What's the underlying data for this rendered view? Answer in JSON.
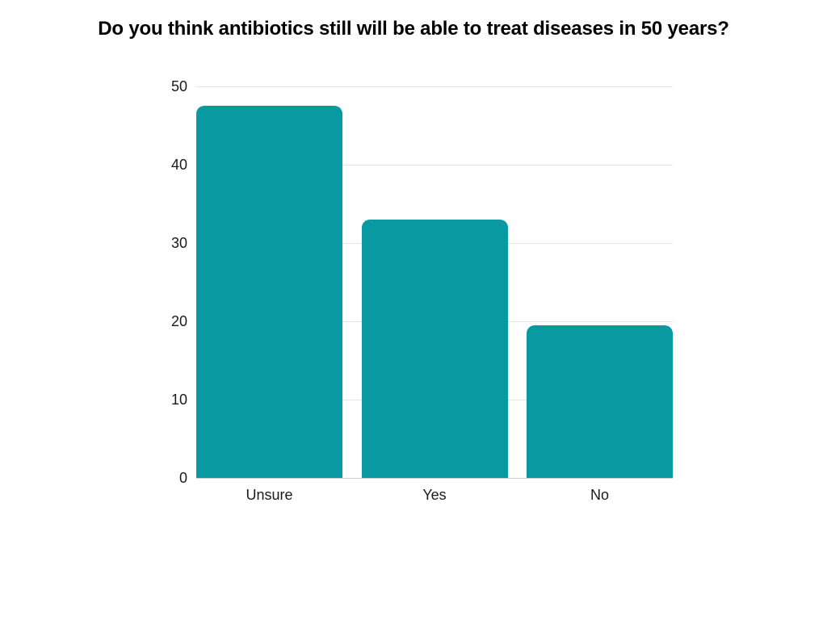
{
  "chart_data": {
    "type": "bar",
    "title": "Do you think antibiotics still will be able to treat diseases in 50 years?",
    "categories": [
      "Unsure",
      "Yes",
      "No"
    ],
    "values": [
      47.5,
      33,
      19.5
    ],
    "xlabel": "",
    "ylabel": "",
    "ylim": [
      0,
      50
    ],
    "yticks": [
      0,
      10,
      20,
      30,
      40,
      50
    ],
    "grid": "horizontal",
    "legend": "none",
    "bar_color": "#0899A1",
    "gridline_color": "#e4e4e4",
    "baseline_color": "#cfcfcf",
    "text_color": "#1a1a1a",
    "background_color": "#ffffff"
  }
}
